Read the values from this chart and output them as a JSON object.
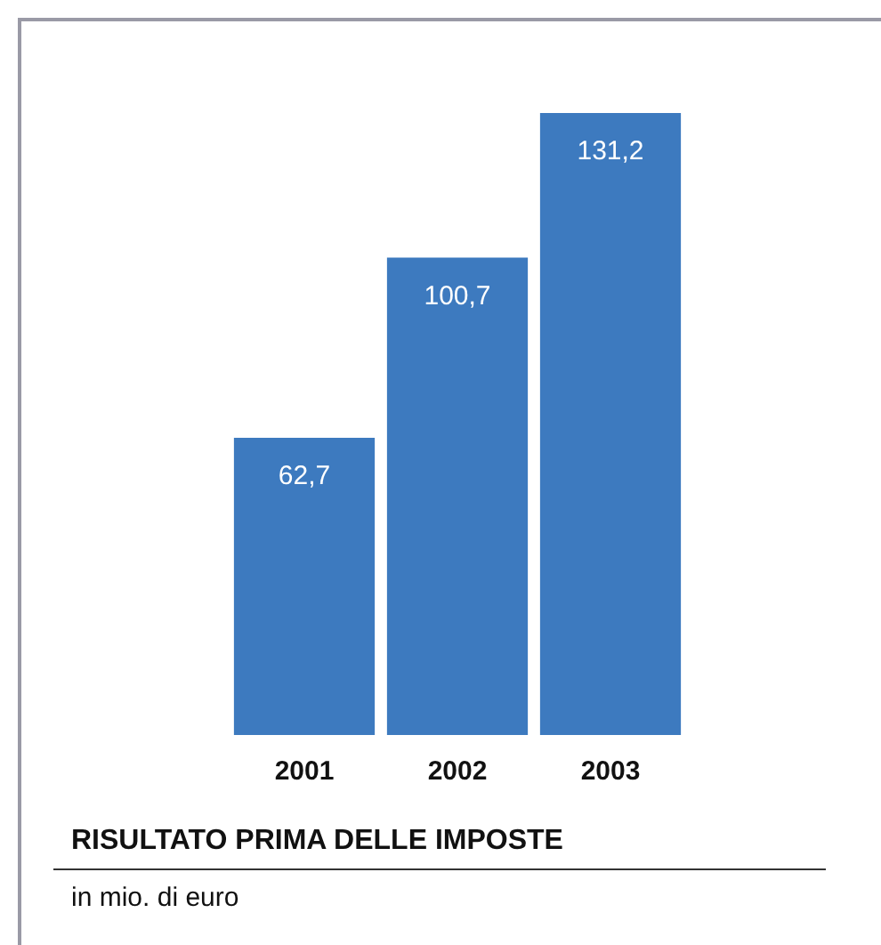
{
  "chart_data": {
    "type": "bar",
    "title": "RISULTATO PRIMA DELLE IMPOSTE",
    "subtitle": "in mio. di euro",
    "categories": [
      "2001",
      "2002",
      "2003"
    ],
    "values": [
      62.7,
      100.7,
      131.2
    ],
    "value_labels": [
      "62,7",
      "100,7",
      "131,2"
    ],
    "color": "#3d7abf"
  }
}
